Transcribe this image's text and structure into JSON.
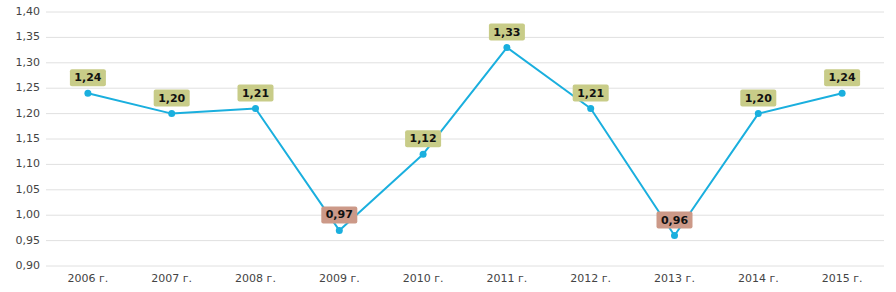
{
  "chart_data": {
    "type": "line",
    "categories": [
      "2006 г.",
      "2007 г.",
      "2008 г.",
      "2009 г.",
      "2010 г.",
      "2011 г.",
      "2012 г.",
      "2013 г.",
      "2014 г.",
      "2015 г."
    ],
    "values": [
      1.24,
      1.2,
      1.21,
      0.97,
      1.12,
      1.33,
      1.21,
      0.96,
      1.2,
      1.24
    ],
    "value_labels": [
      "1,24",
      "1,20",
      "1,21",
      "0,97",
      "1,12",
      "1,33",
      "1,21",
      "0,96",
      "1,20",
      "1,24"
    ],
    "color": "#1AAFDE",
    "colors": [
      "#C8CC88",
      "#C8CC88",
      "#C8CC88",
      "#CC9988",
      "#C8CC88",
      "#C8CC88",
      "#C8CC88",
      "#CC9988",
      "#C8CC88",
      "#C8CC88"
    ],
    "marker": "circle",
    "ylim": [
      0.9,
      1.4
    ],
    "yticks": [
      {
        "value": 0.9,
        "label": "0,90"
      },
      {
        "value": 0.95,
        "label": "0,95"
      },
      {
        "value": 1.0,
        "label": "1,00"
      },
      {
        "value": 1.05,
        "label": "1,05"
      },
      {
        "value": 1.1,
        "label": "1,10"
      },
      {
        "value": 1.15,
        "label": "1,15"
      },
      {
        "value": 1.2,
        "label": "1,20"
      },
      {
        "value": 1.25,
        "label": "1,25"
      },
      {
        "value": 1.3,
        "label": "1,30"
      },
      {
        "value": 1.35,
        "label": "1,35"
      },
      {
        "value": 1.4,
        "label": "1,40"
      }
    ],
    "grid": true,
    "data_labels": true
  }
}
